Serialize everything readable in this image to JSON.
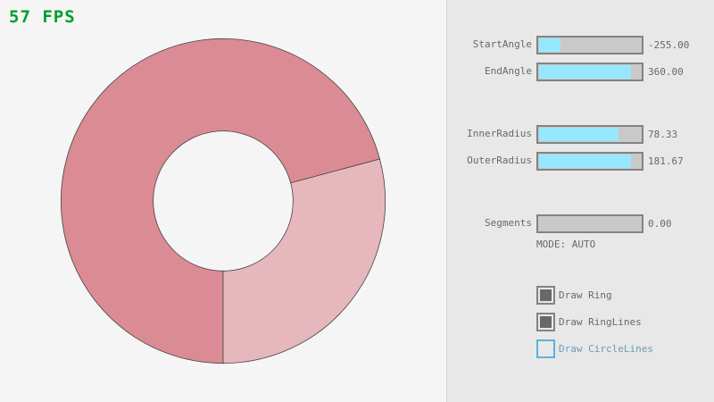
{
  "fps_text": "57 FPS",
  "colors": {
    "ring_main": "#db8b94",
    "ring_overlap": "#e6b7bd",
    "slider_fill": "#97e8ff",
    "fps": "#009e2f",
    "focus": "#5bb2d9"
  },
  "sliders": [
    {
      "label": "StartAngle",
      "value_text": "-255.00",
      "fill": 0.21
    },
    {
      "label": "EndAngle",
      "value_text": "360.00",
      "fill": 0.9
    },
    {
      "label": "InnerRadius",
      "value_text": "78.33",
      "fill": 0.78
    },
    {
      "label": "OuterRadius",
      "value_text": "181.67",
      "fill": 0.907
    },
    {
      "label": "Segments",
      "value_text": "0.00",
      "fill": 0
    }
  ],
  "mode_text": "MODE: AUTO",
  "checkboxes": [
    {
      "label": "Draw Ring",
      "checked": true
    },
    {
      "label": "Draw RingLines",
      "checked": true
    },
    {
      "label": "Draw CircleLines",
      "checked": false,
      "focused": true
    }
  ]
}
